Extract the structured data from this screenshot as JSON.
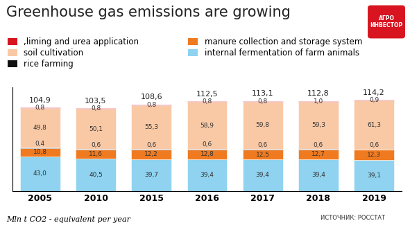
{
  "chart_data": {
    "type": "bar",
    "title": "Greenhouse gas emissions are growing",
    "note": "Mln t CO2 - equivalent per year",
    "source": "ИСТОЧНИК: РОССТАТ",
    "logo": [
      "АГРО",
      "ИНВЕСТОР"
    ],
    "categories": [
      "2005",
      "2010",
      "2015",
      "2016",
      "2017",
      "2018",
      "2019"
    ],
    "stacked": true,
    "data_labels": true,
    "tick_labels": "x",
    "legend": "upper left",
    "ylim": [
      0,
      130
    ],
    "yticks": [],
    "series": [
      {
        "name": "internal fermentation of farm animals",
        "color": "#8fd3f0",
        "values": [
          43.0,
          40.5,
          39.7,
          39.4,
          39.4,
          39.4,
          39.1
        ],
        "value_labels": [
          "43,0",
          "40,5",
          "39,7",
          "39,4",
          "39,4",
          "39,4",
          "39,1"
        ]
      },
      {
        "name": "manure collection and storage system",
        "color": "#f07a1f",
        "values": [
          10.8,
          11.6,
          12.2,
          12.8,
          12.5,
          12.7,
          12.3
        ],
        "value_labels": [
          "10,8",
          "11,6",
          "12,2",
          "12,8",
          "12,5",
          "12,7",
          "12,3"
        ]
      },
      {
        "name": "rice farming",
        "color": "#111111",
        "values": [
          0.4,
          0.6,
          0.6,
          0.6,
          0.6,
          0.6,
          0.6
        ],
        "value_labels": [
          "0,4",
          "0,6",
          "0,6",
          "0,6",
          "0,6",
          "0,6",
          "0,6"
        ]
      },
      {
        "name": "soil cultivation",
        "color": "#f9c9a6",
        "values": [
          49.8,
          50.1,
          55.3,
          58.9,
          59.8,
          59.3,
          61.3
        ],
        "value_labels": [
          "49,8",
          "50,1",
          "55,3",
          "58,9",
          "59,8",
          "59,3",
          "61,3"
        ]
      },
      {
        "name": ",liming and urea application",
        "color": "#d7141f",
        "values": [
          0.8,
          0.8,
          0.8,
          0.8,
          0.8,
          1.0,
          0.9
        ],
        "value_labels": [
          "0,8",
          "0,8",
          "0,8",
          "0,8",
          "0,8",
          "1,0",
          "0,9"
        ]
      }
    ],
    "totals": [
      104.9,
      103.5,
      108.6,
      112.5,
      113.1,
      112.8,
      114.2
    ],
    "total_labels": [
      "104,9",
      "103,5",
      "108,6",
      "112,5",
      "113,1",
      "112,8",
      "114,2"
    ]
  }
}
